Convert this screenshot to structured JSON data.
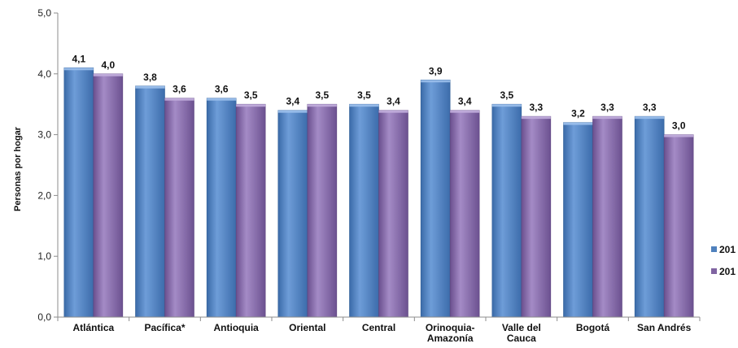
{
  "chart_data": {
    "type": "bar",
    "ylabel": "Personas por hogar",
    "xlabel": "",
    "ylim": [
      0,
      5
    ],
    "ytick_labels": [
      "0,0",
      "1,0",
      "2,0",
      "3,0",
      "4,0",
      "5,0"
    ],
    "yticks": [
      0,
      1,
      2,
      3,
      4,
      5
    ],
    "grid": false,
    "legend_position": "right",
    "categories": [
      [
        "Atlántica"
      ],
      [
        "Pacífica*"
      ],
      [
        "Antioquia"
      ],
      [
        "Oriental"
      ],
      [
        "Central"
      ],
      [
        "Orinoquia-",
        "Amazonía"
      ],
      [
        "Valle del",
        "Cauca"
      ],
      [
        "Bogotá"
      ],
      [
        "San Andrés"
      ]
    ],
    "series": [
      {
        "name": "201",
        "color": "#4F81BD",
        "values": [
          4.1,
          3.8,
          3.6,
          3.4,
          3.5,
          3.9,
          3.5,
          3.2,
          3.3
        ],
        "labels": [
          "4,1",
          "3,8",
          "3,6",
          "3,4",
          "3,5",
          "3,9",
          "3,5",
          "3,2",
          "3,3"
        ]
      },
      {
        "name": "201",
        "color": "#8064A2",
        "values": [
          4.0,
          3.6,
          3.5,
          3.5,
          3.4,
          3.4,
          3.3,
          3.3,
          3.0
        ],
        "labels": [
          "4,0",
          "3,6",
          "3,5",
          "3,5",
          "3,4",
          "3,4",
          "3,3",
          "3,3",
          "3,0"
        ]
      }
    ]
  }
}
